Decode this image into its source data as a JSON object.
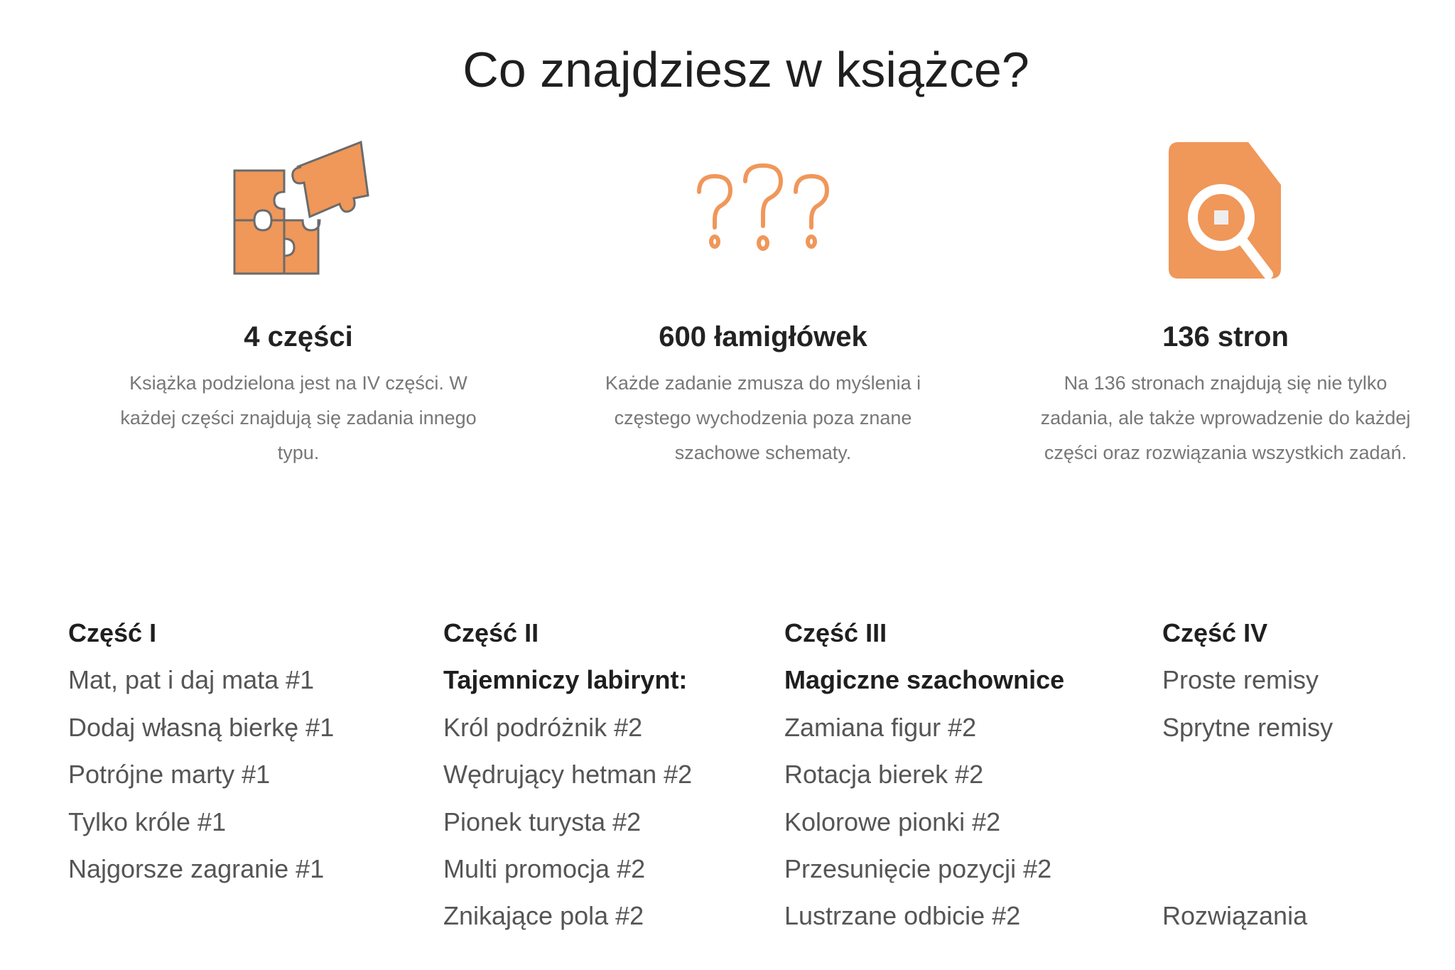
{
  "title": "Co znajdziesz w książce?",
  "accent_color": "#F0975A",
  "features": [
    {
      "icon": "puzzle-icon",
      "heading": "4 części",
      "text": "Książka podzielona jest na IV części. W każdej części znajdują się zadania innego typu."
    },
    {
      "icon": "question-marks-icon",
      "heading": "600 łamigłówek",
      "text": "Każde zadanie zmusza do myślenia i częstego wychodzenia poza znane szachowe schematy."
    },
    {
      "icon": "document-search-icon",
      "heading": "136 stron",
      "text": "Na 136 stronach znajdują się nie tylko zadania, ale także wprowadzenie do każdej części oraz rozwiązania wszystkich zadań."
    }
  ],
  "parts": [
    {
      "heading": "Część I",
      "items": [
        "Mat, pat i daj mata #1",
        "Dodaj własną bierkę #1",
        "Potrójne marty #1",
        "Tylko króle #1",
        "Najgorsze zagranie #1"
      ]
    },
    {
      "heading": "Część II",
      "subheading": "Tajemniczy labirynt:",
      "items": [
        "Król podróżnik #2",
        "Wędrujący hetman #2",
        "Pionek turysta #2",
        "Multi promocja #2",
        "Znikające pola #2"
      ]
    },
    {
      "heading": "Część III",
      "subheading": "Magiczne szachownice",
      "items": [
        "Zamiana figur #2",
        "Rotacja bierek #2",
        "Kolorowe pionki #2",
        "Przesunięcie pozycji #2",
        "Lustrzane odbicie #2"
      ]
    },
    {
      "heading": "Część IV",
      "items": [
        "Proste remisy",
        "Sprytne remisy",
        "",
        "",
        "",
        "Rozwiązania"
      ]
    }
  ]
}
